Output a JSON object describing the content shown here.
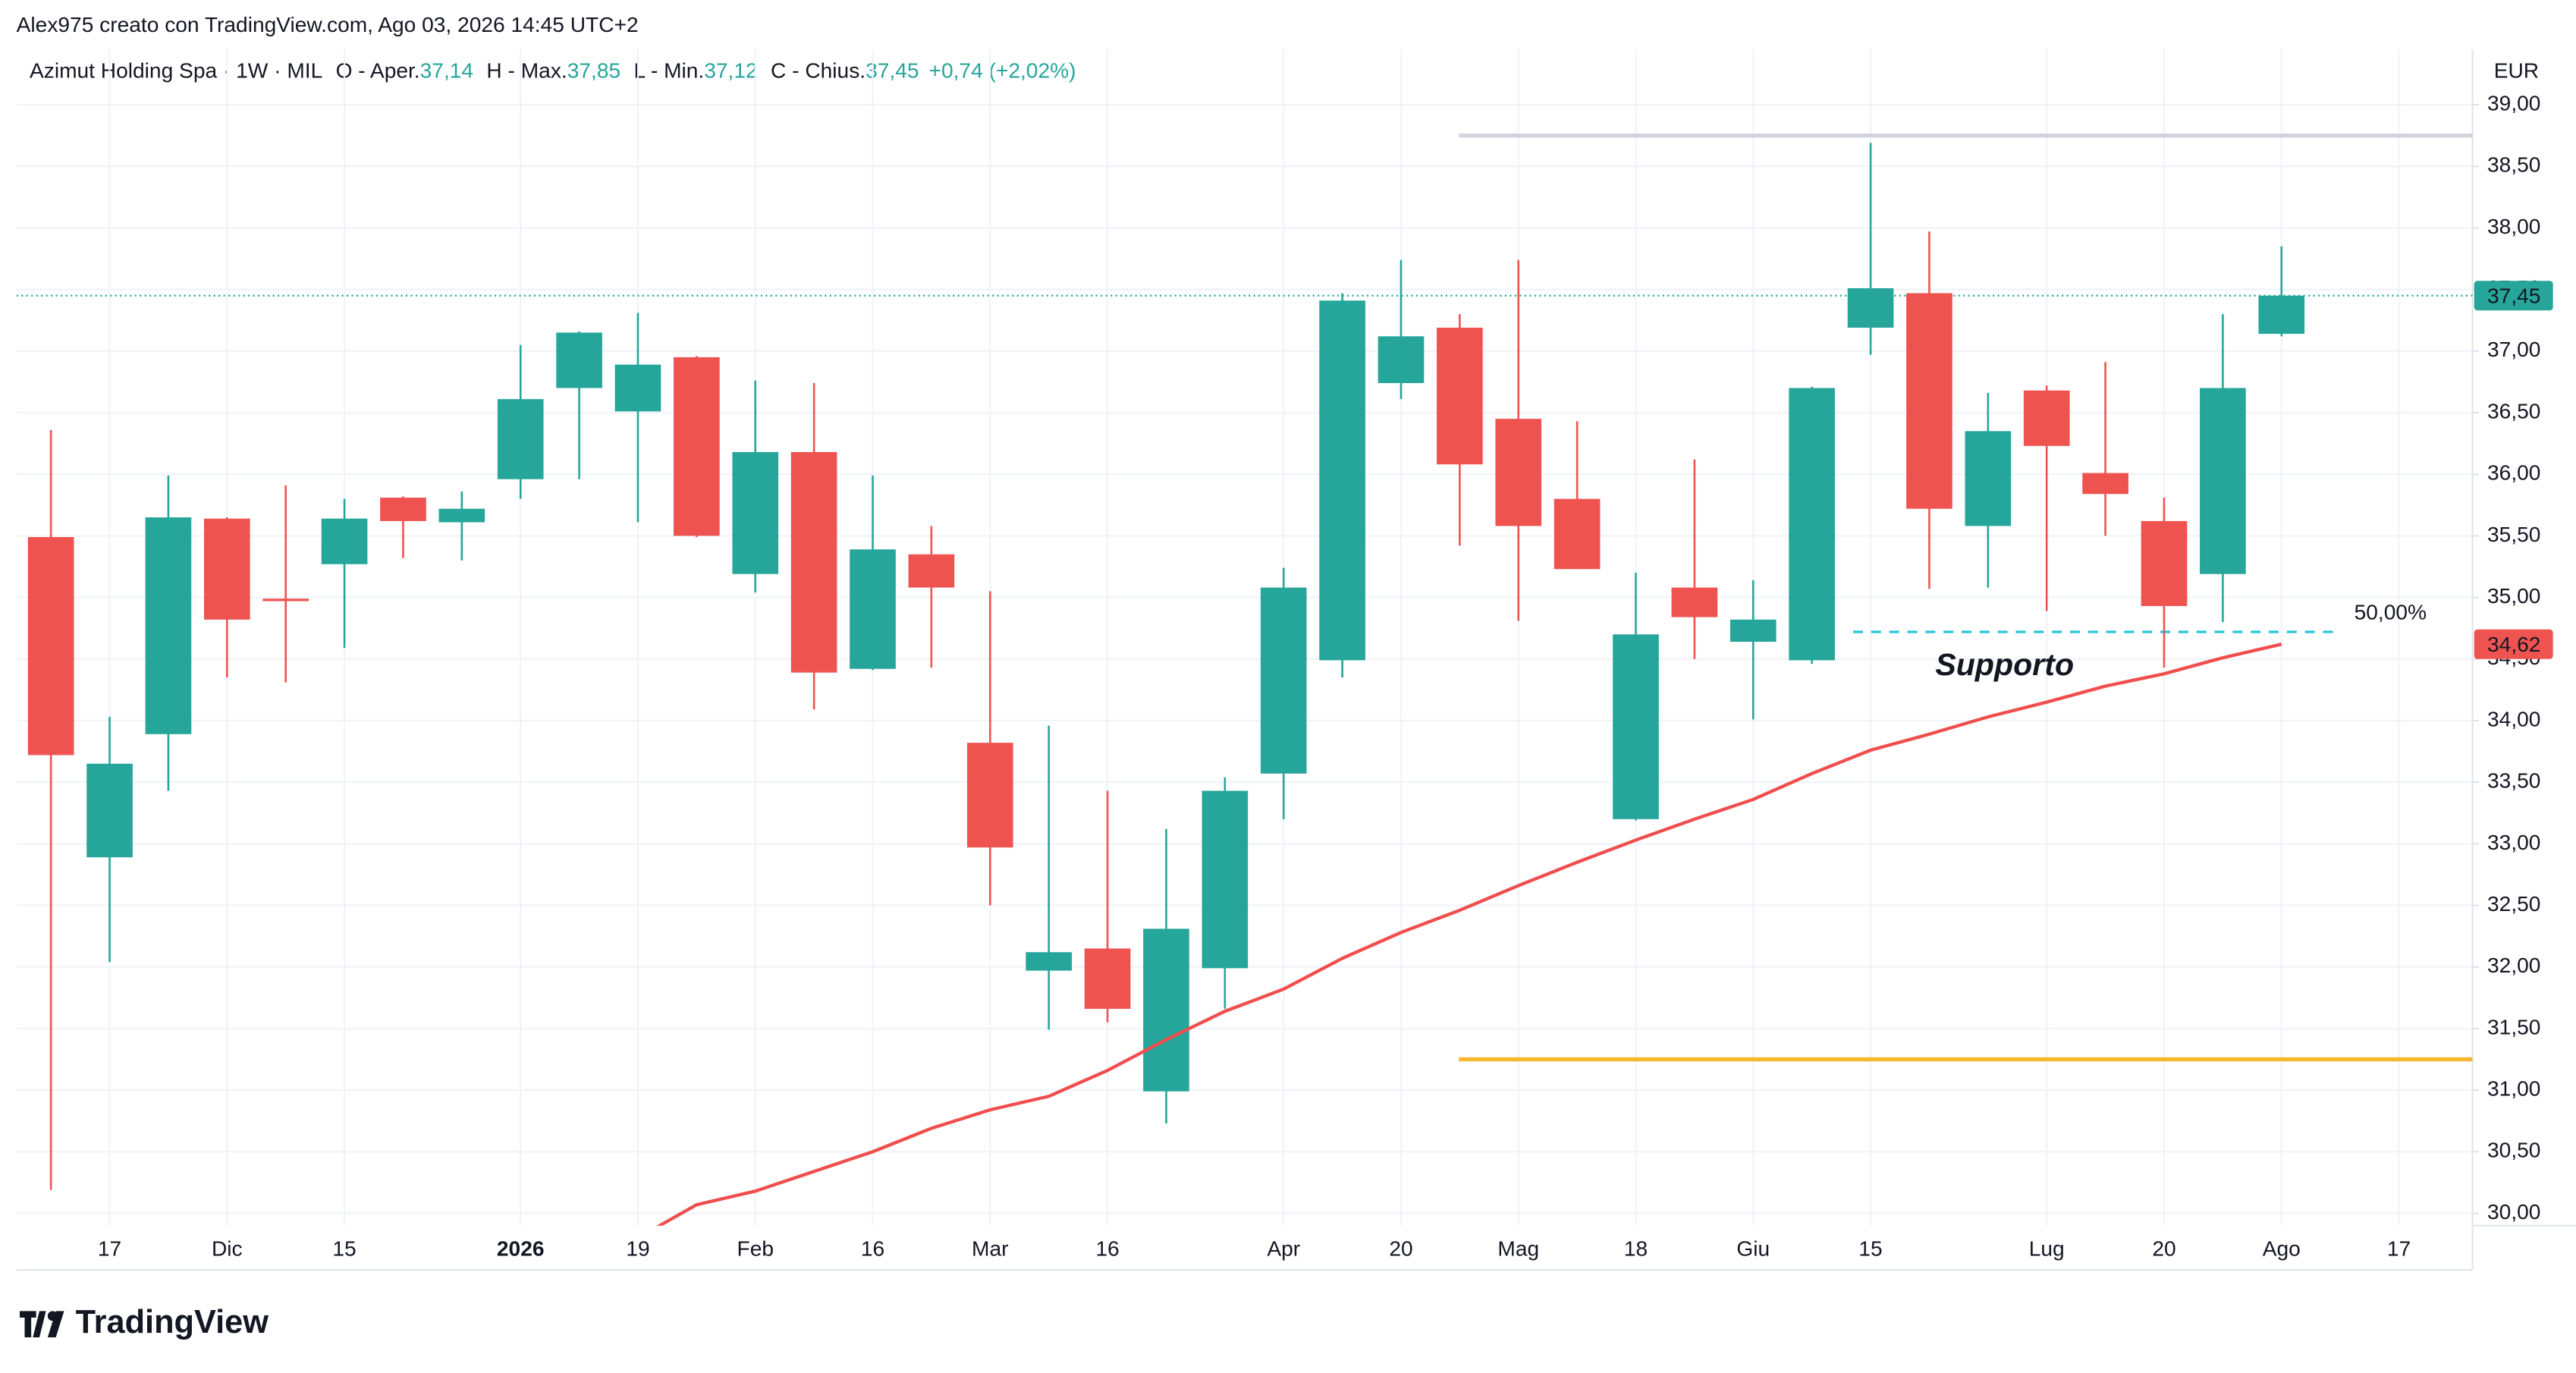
{
  "header": "Alex975 creato con TradingView.com, Ago 03, 2026 14:45 UTC+2",
  "legend": {
    "symbol": "Azimut Holding Spa · 1W · MIL",
    "items": [
      {
        "label": "O - Aper.",
        "value": "37,14"
      },
      {
        "label": "H - Max.",
        "value": "37,85"
      },
      {
        "label": "L - Min.",
        "value": "37,12"
      },
      {
        "label": "C - Chius.",
        "value": "37,45"
      }
    ],
    "change": "+0,74 (+2,02%)"
  },
  "footer": "TradingView",
  "chart_data": {
    "type": "candlestick",
    "currency": "EUR",
    "categories": [
      null,
      "17",
      null,
      "Dic",
      null,
      "15",
      null,
      null,
      "2026",
      null,
      "19",
      null,
      "Feb",
      null,
      "16",
      null,
      "Mar",
      null,
      "16",
      null,
      null,
      "Apr",
      null,
      "20",
      null,
      "Mag",
      null,
      "18",
      null,
      "Giu",
      null,
      "15",
      null,
      null,
      "Lug",
      null,
      "20",
      null,
      "Ago",
      null,
      "17"
    ],
    "open": [
      35.49,
      32.89,
      33.89,
      35.64,
      34.99,
      35.27,
      35.81,
      35.61,
      35.96,
      36.7,
      36.51,
      36.95,
      35.19,
      36.18,
      34.42,
      35.35,
      33.82,
      31.97,
      32.15,
      30.99,
      31.99,
      33.57,
      34.49,
      36.74,
      37.19,
      36.45,
      35.8,
      33.2,
      35.08,
      34.64,
      34.49,
      37.19,
      37.47,
      35.58,
      36.68,
      36.01,
      35.62,
      35.19,
      37.14,
      null,
      null
    ],
    "high": [
      36.36,
      34.03,
      35.99,
      35.65,
      35.91,
      35.8,
      35.82,
      35.86,
      37.05,
      37.16,
      37.31,
      36.96,
      36.76,
      36.74,
      35.99,
      35.58,
      35.05,
      33.96,
      33.43,
      33.12,
      33.54,
      35.24,
      37.47,
      37.74,
      37.3,
      37.74,
      36.43,
      35.2,
      36.12,
      35.14,
      36.71,
      38.69,
      37.97,
      36.66,
      36.72,
      36.91,
      35.81,
      37.3,
      37.85,
      null,
      null
    ],
    "low": [
      30.19,
      32.04,
      33.43,
      34.35,
      34.31,
      34.59,
      35.32,
      35.3,
      35.8,
      35.96,
      35.61,
      35.49,
      35.04,
      34.09,
      34.41,
      34.43,
      32.5,
      31.49,
      31.55,
      30.73,
      31.66,
      33.2,
      34.35,
      36.61,
      35.42,
      34.81,
      35.23,
      33.19,
      34.5,
      34.01,
      34.46,
      36.97,
      35.07,
      35.08,
      34.89,
      35.5,
      34.43,
      34.8,
      37.12,
      null,
      null
    ],
    "close": [
      33.72,
      33.65,
      35.65,
      34.82,
      34.97,
      35.64,
      35.62,
      35.72,
      36.61,
      37.15,
      36.89,
      35.5,
      36.18,
      34.39,
      35.39,
      35.08,
      32.97,
      32.12,
      31.66,
      32.31,
      33.43,
      35.08,
      37.41,
      37.12,
      36.08,
      35.58,
      35.23,
      34.7,
      34.84,
      34.82,
      36.7,
      37.51,
      35.72,
      36.35,
      36.23,
      35.84,
      34.93,
      36.7,
      37.45,
      null,
      null
    ],
    "up_color": "#26a69a",
    "down_color": "#ef5350",
    "moving_average": {
      "color": "#f04e4e",
      "values": [
        null,
        null,
        null,
        null,
        null,
        null,
        null,
        null,
        null,
        null,
        29.8,
        30.07,
        30.18,
        30.34,
        30.5,
        30.69,
        30.84,
        30.95,
        31.16,
        31.41,
        31.64,
        31.82,
        32.07,
        32.28,
        32.46,
        32.66,
        32.85,
        33.03,
        33.2,
        33.36,
        33.57,
        33.76,
        33.89,
        34.03,
        34.15,
        34.28,
        34.38,
        34.51,
        34.62,
        null,
        null
      ]
    },
    "levels": [
      {
        "value": 38.75,
        "color": "#d1d4dc"
      },
      {
        "value": 31.25,
        "color": "#f5b82e"
      }
    ],
    "fib_level": {
      "value": 34.72,
      "label": "50,00%",
      "color": "#26c6da"
    },
    "annotation": {
      "text": "Supporto",
      "color": "#4dd0e1"
    },
    "price_labels": [
      {
        "value": 37.45,
        "label": "37,45",
        "color": "#26a69a"
      },
      {
        "value": 34.62,
        "label": "34,62",
        "color": "#ef5350"
      }
    ],
    "ylim": [
      29.9,
      39.45
    ],
    "yticks": [
      {
        "value": 30,
        "label": "30,00"
      },
      {
        "value": 30.5,
        "label": "30,50"
      },
      {
        "value": 31,
        "label": "31,00"
      },
      {
        "value": 31.5,
        "label": "31,50"
      },
      {
        "value": 32,
        "label": "32,00"
      },
      {
        "value": 32.5,
        "label": "32,50"
      },
      {
        "value": 33,
        "label": "33,00"
      },
      {
        "value": 33.5,
        "label": "33,50"
      },
      {
        "value": 34,
        "label": "34,00"
      },
      {
        "value": 34.5,
        "label": "34,50"
      },
      {
        "value": 35,
        "label": "35,00"
      },
      {
        "value": 35.5,
        "label": "35,50"
      },
      {
        "value": 36,
        "label": "36,00"
      },
      {
        "value": 36.5,
        "label": "36,50"
      },
      {
        "value": 37,
        "label": "37,00"
      },
      {
        "value": 37.5,
        "label": "37,50"
      },
      {
        "value": 38,
        "label": "38,00"
      },
      {
        "value": 38.5,
        "label": "38,50"
      },
      {
        "value": 39,
        "label": "39,00"
      }
    ],
    "grid": true
  }
}
